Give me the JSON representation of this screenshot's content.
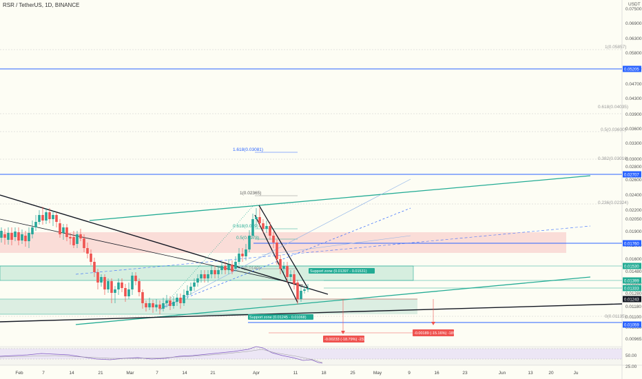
{
  "header": {
    "symbol_title": "RSR / TetherUS, 1D, BINANCE"
  },
  "price_axis": {
    "unit": "USDT",
    "labels": [
      "0.07500",
      "0.06900",
      "0.06300",
      "0.05800",
      "0.05200",
      "0.04700",
      "0.04300",
      "0.03900",
      "0.03600",
      "0.03300",
      "0.03000",
      "0.02800",
      "0.02600",
      "0.02400",
      "0.02200",
      "0.02050",
      "0.01900",
      "0.01750",
      "0.01600",
      "0.01480",
      "0.01380",
      "0.01280",
      "0.01180",
      "0.01100",
      "0.01030",
      "0.00965",
      "50.00",
      "25.00"
    ]
  },
  "price_tags": [
    {
      "text": "0.05205",
      "color": "#2962ff"
    },
    {
      "text": "0.02707",
      "color": "#2962ff"
    },
    {
      "text": "0.01760",
      "color": "#2962ff"
    },
    {
      "text": "0.01530",
      "color": "#22ab94"
    },
    {
      "text": "0.01399",
      "color": "#22ab94"
    },
    {
      "text": "0.01333",
      "color": "#22ab94"
    },
    {
      "text": "0.01243",
      "color": "#131722"
    },
    {
      "text": "0.01059",
      "color": "#2962ff"
    }
  ],
  "time_axis": {
    "labels": [
      "Feb",
      "7",
      "14",
      "21",
      "Mar",
      "7",
      "14",
      "21",
      "Apr",
      "11",
      "18",
      "25",
      "May",
      "9",
      "16",
      "23",
      "Jun",
      "13",
      "20",
      "Ju"
    ]
  },
  "fib_levels": [
    "1(0.05857)",
    "0.618(0.04035)",
    "0.5(0.03600)",
    "0.382(0.03016)",
    "0.236(0.02324)",
    "0(0.01135)",
    "1.618(0.03081)",
    "1(0.02365)",
    "0.618(0.019)",
    "0.5(0.0178)",
    "0(0.0140)"
  ],
  "zones": {
    "support_upper": "Support zone (0.01397 - 0.01531)",
    "support_lower": "Support zone (0.01245 - 0.01068)"
  },
  "measure_labels": [
    "-0.00233 (-18.79%) -233",
    "-0.00189 (-15.16%) -189"
  ],
  "colors": {
    "support": "#22ab94",
    "resistance": "#f7c5c0",
    "blue": "#2962ff",
    "up": "#26a69a",
    "down": "#ef5350",
    "trend": "#131722"
  }
}
